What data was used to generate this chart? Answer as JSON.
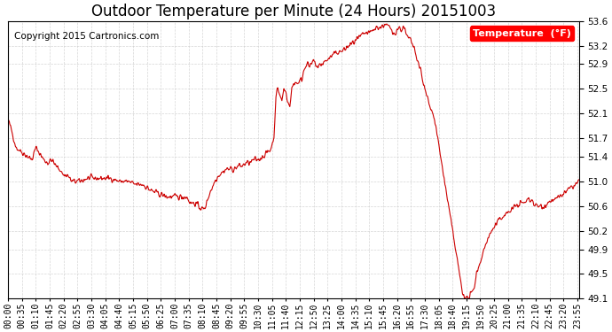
{
  "title": "Outdoor Temperature per Minute (24 Hours) 20151003",
  "copyright_text": "Copyright 2015 Cartronics.com",
  "legend_label": "Temperature  (°F)",
  "line_color": "#cc0000",
  "background_color": "#ffffff",
  "grid_color": "#cccccc",
  "ylim": [
    49.1,
    53.6
  ],
  "yticks": [
    49.1,
    49.5,
    49.9,
    50.2,
    50.6,
    51.0,
    51.4,
    51.7,
    52.1,
    52.5,
    52.9,
    53.2,
    53.6
  ],
  "xtick_interval_minutes": 35,
  "total_minutes": 1440,
  "title_fontsize": 12,
  "axis_fontsize": 7,
  "legend_fontsize": 8,
  "copyright_fontsize": 7.5
}
